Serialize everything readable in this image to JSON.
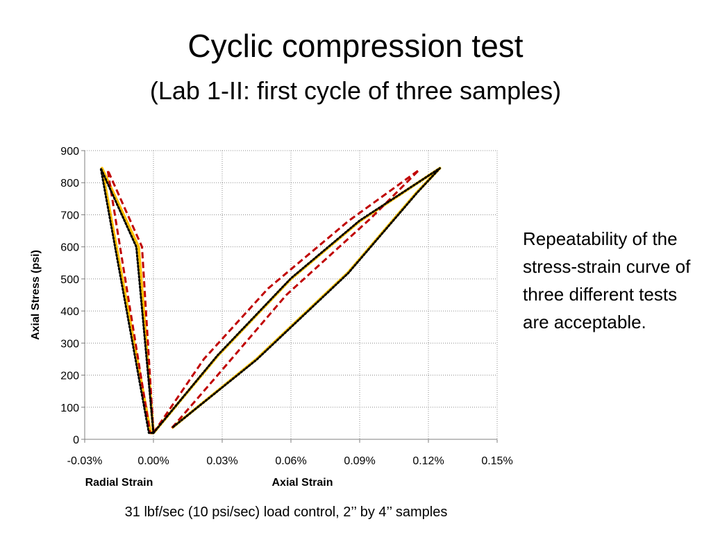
{
  "slide": {
    "title": "Cyclic compression test",
    "subtitle": "(Lab 1-II: first cycle of three samples)",
    "side_note": "Repeatability of the stress-strain curve of three different tests are acceptable.",
    "footnote": "31 lbf/sec (10 psi/sec) load control, 2’’ by 4’’ samples"
  },
  "chart_data": {
    "type": "line",
    "title": "",
    "ylabel": "Axial Stress (psi)",
    "xlabels": [
      {
        "text": "Radial Strain",
        "x": -0.015
      },
      {
        "text": "Axial Strain",
        "x": 0.065
      }
    ],
    "xlim": [
      -0.03,
      0.15
    ],
    "ylim": [
      0,
      900
    ],
    "x_ticks": [
      -0.03,
      0.0,
      0.03,
      0.06,
      0.09,
      0.12,
      0.15
    ],
    "x_tick_labels": [
      "-0.03%",
      "0.00%",
      "0.03%",
      "0.06%",
      "0.09%",
      "0.12%",
      "0.15%"
    ],
    "y_ticks": [
      0,
      100,
      200,
      300,
      400,
      500,
      600,
      700,
      800,
      900
    ],
    "y_tick_labels": [
      "0",
      "100",
      "200",
      "300",
      "400",
      "500",
      "600",
      "700",
      "800",
      "900"
    ],
    "grid": true,
    "legend": "none",
    "series": [
      {
        "color": "#FFC000",
        "dash": "solid",
        "radial": [
          [
            0.0,
            20
          ],
          [
            -0.0065,
            600
          ],
          [
            -0.0225,
            845
          ],
          [
            -0.0012,
            20
          ],
          [
            0.0,
            20
          ]
        ],
        "axial": [
          [
            0.0,
            20
          ],
          [
            0.028,
            260
          ],
          [
            0.06,
            500
          ],
          [
            0.09,
            680
          ],
          [
            0.125,
            845
          ],
          [
            0.115,
            770
          ],
          [
            0.085,
            520
          ],
          [
            0.045,
            250
          ],
          [
            0.008,
            35
          ]
        ]
      },
      {
        "color": "#C00000",
        "dash": "dashed",
        "radial": [
          [
            0.0,
            20
          ],
          [
            -0.005,
            600
          ],
          [
            -0.02,
            840
          ],
          [
            -0.0015,
            20
          ],
          [
            0.0,
            20
          ]
        ],
        "axial": [
          [
            0.0,
            20
          ],
          [
            0.022,
            250
          ],
          [
            0.05,
            470
          ],
          [
            0.085,
            680
          ],
          [
            0.116,
            840
          ],
          [
            0.095,
            690
          ],
          [
            0.058,
            450
          ],
          [
            0.028,
            200
          ],
          [
            0.008,
            35
          ]
        ]
      },
      {
        "color": "#000000",
        "dash": "dotted",
        "radial": [
          [
            0.0,
            20
          ],
          [
            -0.0075,
            600
          ],
          [
            -0.023,
            845
          ],
          [
            -0.002,
            20
          ],
          [
            0.0,
            20
          ]
        ],
        "axial": [
          [
            0.0,
            20
          ],
          [
            0.028,
            262
          ],
          [
            0.06,
            502
          ],
          [
            0.09,
            682
          ],
          [
            0.125,
            845
          ],
          [
            0.115,
            768
          ],
          [
            0.085,
            518
          ],
          [
            0.045,
            248
          ],
          [
            0.008,
            35
          ]
        ]
      }
    ]
  }
}
